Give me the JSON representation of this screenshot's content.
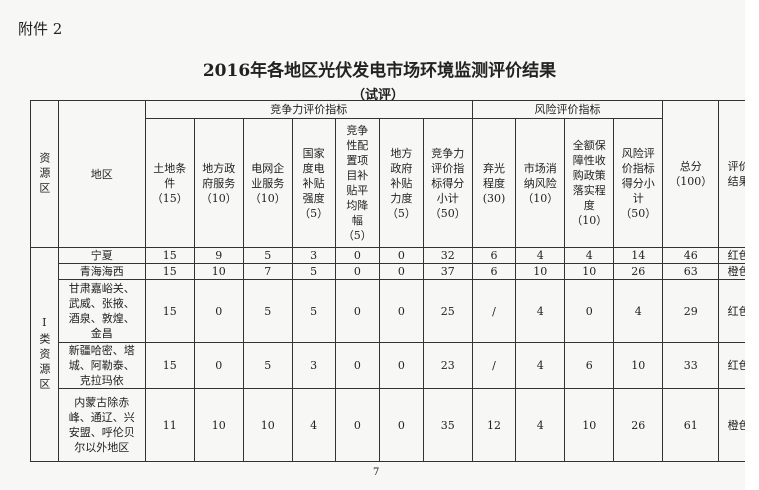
{
  "attachment": "附件 2",
  "title": "2016年各地区光伏发电市场环境监测评价结果",
  "subtitle": "（试评）",
  "headers": {
    "resource_zone": "资源区",
    "region": "地区",
    "competitiveness_group": "竞争力评价指标",
    "risk_group": "风险评价指标",
    "columns": [
      "土地条件（15）",
      "地方政府服务（10）",
      "电网企业服务（10）",
      "国家度电补贴强度（5）",
      "竞争性配置项目补贴平均降幅（5）",
      "地方政府补贴力度（5）",
      "竞争力评价指标得分小计（50）",
      "弃光程度(30)",
      "市场消纳风险（10）",
      "全额保障性收购政策落实程度（10）",
      "风险评价指标得分小计（50）",
      "总分（100）",
      "评价结果"
    ]
  },
  "zone_label": "I类资源区",
  "rows": [
    {
      "region": "宁夏",
      "values": [
        "15",
        "9",
        "5",
        "3",
        "0",
        "0",
        "32",
        "6",
        "4",
        "4",
        "14",
        "46",
        "红色"
      ]
    },
    {
      "region": "青海海西",
      "values": [
        "15",
        "10",
        "7",
        "5",
        "0",
        "0",
        "37",
        "6",
        "10",
        "10",
        "26",
        "63",
        "橙色"
      ]
    },
    {
      "region": "甘肃嘉峪关、武威、张掖、酒泉、敦煌、金昌",
      "values": [
        "15",
        "0",
        "5",
        "5",
        "0",
        "0",
        "25",
        "/",
        "4",
        "0",
        "4",
        "29",
        "红色"
      ]
    },
    {
      "region": "新疆哈密、塔城、阿勒泰、克拉玛依",
      "values": [
        "15",
        "0",
        "5",
        "3",
        "0",
        "0",
        "23",
        "/",
        "4",
        "6",
        "10",
        "33",
        "红色"
      ]
    },
    {
      "region": "内蒙古除赤峰、通辽、兴安盟、呼伦贝尔以外地区",
      "values": [
        "11",
        "10",
        "10",
        "4",
        "0",
        "0",
        "35",
        "12",
        "4",
        "10",
        "26",
        "61",
        "橙色"
      ]
    }
  ],
  "page_number": "7"
}
